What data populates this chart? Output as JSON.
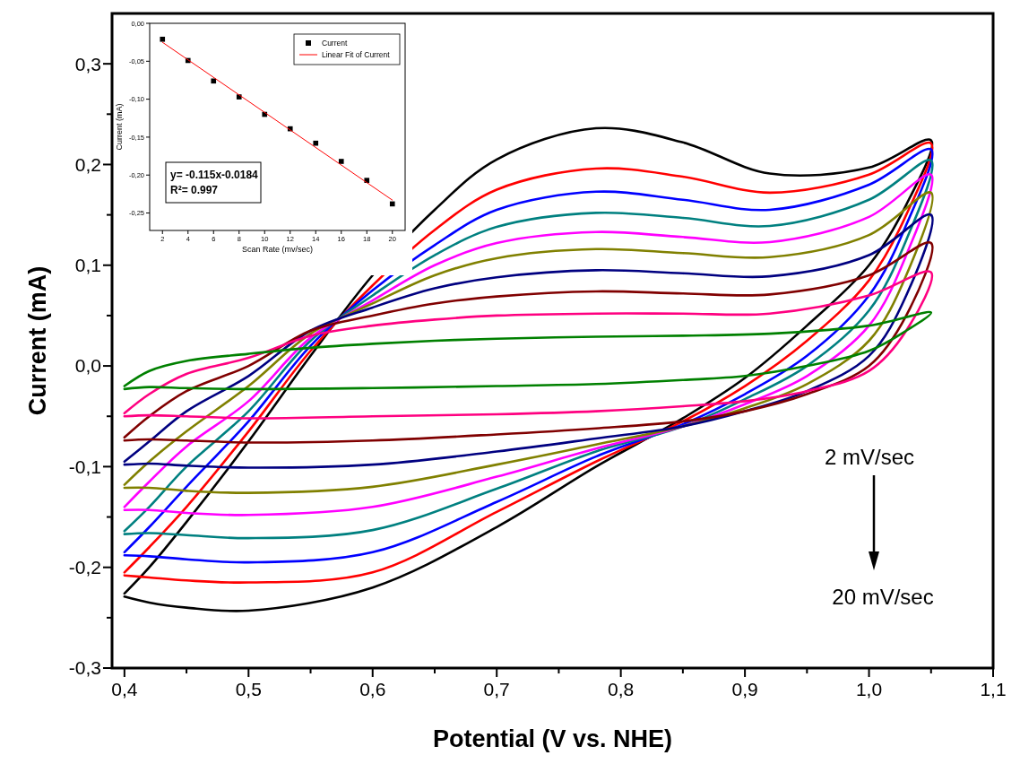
{
  "chart_data": [
    {
      "type": "line",
      "xlabel": "Potential (V vs. NHE)",
      "ylabel": "Current (mA)",
      "xlim": [
        0.39,
        1.1
      ],
      "ylim": [
        -0.3,
        0.35
      ],
      "xticks": [
        {
          "value": 0.4,
          "label": "0,4"
        },
        {
          "value": 0.45,
          "label": null
        },
        {
          "value": 0.5,
          "label": "0,5"
        },
        {
          "value": 0.55,
          "label": null
        },
        {
          "value": 0.6,
          "label": "0,6"
        },
        {
          "value": 0.65,
          "label": null
        },
        {
          "value": 0.7,
          "label": "0,7"
        },
        {
          "value": 0.75,
          "label": null
        },
        {
          "value": 0.8,
          "label": "0,8"
        },
        {
          "value": 0.85,
          "label": null
        },
        {
          "value": 0.9,
          "label": "0,9"
        },
        {
          "value": 0.95,
          "label": null
        },
        {
          "value": 1.0,
          "label": "1,0"
        },
        {
          "value": 1.05,
          "label": null
        },
        {
          "value": 1.1,
          "label": "1,1"
        }
      ],
      "yticks": [
        {
          "value": -0.3,
          "label": "-0,3"
        },
        {
          "value": -0.25,
          "label": null
        },
        {
          "value": -0.2,
          "label": "-0,2"
        },
        {
          "value": -0.15,
          "label": null
        },
        {
          "value": -0.1,
          "label": "-0,1"
        },
        {
          "value": -0.05,
          "label": null
        },
        {
          "value": 0,
          "label": "0,0"
        },
        {
          "value": 0.05,
          "label": null
        },
        {
          "value": 0.1,
          "label": "0,1"
        },
        {
          "value": 0.15,
          "label": null
        },
        {
          "value": 0.2,
          "label": "0,2"
        },
        {
          "value": 0.25,
          "label": null
        },
        {
          "value": 0.3,
          "label": "0,3"
        }
      ],
      "annotations": [
        "2 mV/sec",
        "20 mV/sec"
      ],
      "series": [
        {
          "color": "#000000",
          "x": [
            0.4,
            0.42,
            0.45,
            0.5,
            0.55,
            0.6,
            0.65,
            0.7,
            0.78,
            0.85,
            0.92,
            1.0,
            1.05,
            1.03,
            1.0,
            0.95,
            0.9,
            0.85,
            0.78,
            0.7,
            0.6,
            0.5,
            0.45,
            0.42,
            0.4
          ],
          "values": [
            -0.226,
            -0.2,
            -0.155,
            -0.075,
            0.01,
            0.09,
            0.155,
            0.205,
            0.236,
            0.222,
            0.191,
            0.197,
            0.224,
            0.16,
            0.1,
            0.04,
            -0.012,
            -0.052,
            -0.1,
            -0.16,
            -0.22,
            -0.243,
            -0.24,
            -0.235,
            -0.229
          ]
        },
        {
          "color": "#ff0000",
          "x": [
            0.4,
            0.42,
            0.45,
            0.5,
            0.55,
            0.6,
            0.65,
            0.7,
            0.78,
            0.85,
            0.92,
            1.0,
            1.05,
            1.03,
            1.0,
            0.95,
            0.9,
            0.85,
            0.78,
            0.7,
            0.6,
            0.5,
            0.45,
            0.42,
            0.4
          ],
          "values": [
            -0.205,
            -0.18,
            -0.14,
            -0.065,
            0.015,
            0.08,
            0.135,
            0.175,
            0.196,
            0.188,
            0.172,
            0.19,
            0.221,
            0.15,
            0.085,
            0.025,
            -0.02,
            -0.055,
            -0.095,
            -0.145,
            -0.205,
            -0.215,
            -0.213,
            -0.21,
            -0.208
          ]
        },
        {
          "color": "#0000ff",
          "x": [
            0.4,
            0.42,
            0.45,
            0.5,
            0.55,
            0.6,
            0.65,
            0.7,
            0.78,
            0.85,
            0.92,
            1.0,
            1.05,
            1.03,
            1.0,
            0.95,
            0.9,
            0.85,
            0.78,
            0.7,
            0.6,
            0.5,
            0.45,
            0.42,
            0.4
          ],
          "values": [
            -0.185,
            -0.16,
            -0.12,
            -0.055,
            0.02,
            0.075,
            0.12,
            0.155,
            0.173,
            0.165,
            0.155,
            0.18,
            0.215,
            0.14,
            0.07,
            0.01,
            -0.028,
            -0.058,
            -0.09,
            -0.135,
            -0.185,
            -0.195,
            -0.192,
            -0.189,
            -0.188
          ]
        },
        {
          "color": "#008080",
          "x": [
            0.4,
            0.42,
            0.45,
            0.5,
            0.55,
            0.6,
            0.65,
            0.7,
            0.78,
            0.85,
            0.92,
            1.0,
            1.05,
            1.03,
            1.0,
            0.95,
            0.9,
            0.85,
            0.78,
            0.7,
            0.6,
            0.5,
            0.45,
            0.42,
            0.4
          ],
          "values": [
            -0.164,
            -0.14,
            -0.1,
            -0.045,
            0.025,
            0.07,
            0.11,
            0.138,
            0.152,
            0.147,
            0.139,
            0.165,
            0.204,
            0.125,
            0.055,
            0,
            -0.033,
            -0.06,
            -0.085,
            -0.122,
            -0.163,
            -0.171,
            -0.168,
            -0.166,
            -0.167
          ]
        },
        {
          "color": "#ff00ff",
          "x": [
            0.4,
            0.42,
            0.45,
            0.5,
            0.55,
            0.6,
            0.65,
            0.7,
            0.78,
            0.85,
            0.92,
            1.0,
            1.05,
            1.03,
            1.0,
            0.95,
            0.9,
            0.85,
            0.78,
            0.7,
            0.6,
            0.5,
            0.45,
            0.42,
            0.4
          ],
          "values": [
            -0.14,
            -0.115,
            -0.08,
            -0.035,
            0.028,
            0.065,
            0.1,
            0.122,
            0.133,
            0.128,
            0.123,
            0.148,
            0.19,
            0.11,
            0.04,
            -0.01,
            -0.038,
            -0.06,
            -0.082,
            -0.11,
            -0.14,
            -0.148,
            -0.146,
            -0.143,
            -0.143
          ]
        },
        {
          "color": "#808000",
          "x": [
            0.4,
            0.42,
            0.45,
            0.5,
            0.55,
            0.6,
            0.65,
            0.7,
            0.78,
            0.85,
            0.92,
            1.0,
            1.05,
            1.03,
            1.0,
            0.95,
            0.9,
            0.85,
            0.78,
            0.7,
            0.6,
            0.5,
            0.45,
            0.42,
            0.4
          ],
          "values": [
            -0.118,
            -0.095,
            -0.065,
            -0.02,
            0.032,
            0.062,
            0.09,
            0.107,
            0.116,
            0.112,
            0.108,
            0.13,
            0.172,
            0.09,
            0.025,
            -0.018,
            -0.042,
            -0.06,
            -0.078,
            -0.098,
            -0.12,
            -0.126,
            -0.124,
            -0.121,
            -0.121
          ]
        },
        {
          "color": "#000080",
          "x": [
            0.4,
            0.42,
            0.45,
            0.5,
            0.55,
            0.6,
            0.65,
            0.7,
            0.78,
            0.85,
            0.92,
            1.0,
            1.05,
            1.03,
            1.0,
            0.95,
            0.9,
            0.85,
            0.78,
            0.7,
            0.6,
            0.5,
            0.45,
            0.42,
            0.4
          ],
          "values": [
            -0.095,
            -0.075,
            -0.045,
            -0.01,
            0.035,
            0.058,
            0.077,
            0.088,
            0.095,
            0.092,
            0.089,
            0.11,
            0.15,
            0.07,
            0.01,
            -0.025,
            -0.045,
            -0.06,
            -0.072,
            -0.085,
            -0.098,
            -0.101,
            -0.099,
            -0.097,
            -0.098
          ]
        },
        {
          "color": "#800000",
          "x": [
            0.4,
            0.42,
            0.45,
            0.5,
            0.55,
            0.6,
            0.65,
            0.7,
            0.78,
            0.85,
            0.92,
            1.0,
            1.05,
            1.03,
            1.0,
            0.95,
            0.9,
            0.85,
            0.78,
            0.7,
            0.6,
            0.5,
            0.45,
            0.42,
            0.4
          ],
          "values": [
            -0.071,
            -0.05,
            -0.025,
            0,
            0.035,
            0.05,
            0.062,
            0.069,
            0.074,
            0.072,
            0.071,
            0.09,
            0.122,
            0.05,
            0,
            -0.028,
            -0.045,
            -0.055,
            -0.062,
            -0.068,
            -0.074,
            -0.076,
            -0.074,
            -0.073,
            -0.074
          ]
        },
        {
          "color": "#ff0080",
          "x": [
            0.4,
            0.42,
            0.45,
            0.5,
            0.55,
            0.6,
            0.65,
            0.7,
            0.78,
            0.85,
            0.92,
            1.0,
            1.05,
            1.03,
            1.0,
            0.95,
            0.9,
            0.85,
            0.78,
            0.7,
            0.6,
            0.5,
            0.45,
            0.42,
            0.4
          ],
          "values": [
            -0.047,
            -0.028,
            -0.008,
            0.008,
            0.03,
            0.04,
            0.046,
            0.05,
            0.052,
            0.052,
            0.052,
            0.07,
            0.093,
            0.035,
            -0.005,
            -0.025,
            -0.035,
            -0.04,
            -0.045,
            -0.048,
            -0.05,
            -0.052,
            -0.05,
            -0.049,
            -0.05
          ]
        },
        {
          "color": "#008000",
          "x": [
            0.4,
            0.42,
            0.45,
            0.5,
            0.55,
            0.6,
            0.65,
            0.7,
            0.78,
            0.85,
            0.92,
            1.0,
            1.05,
            1.03,
            1.0,
            0.95,
            0.9,
            0.85,
            0.78,
            0.7,
            0.6,
            0.5,
            0.45,
            0.42,
            0.4
          ],
          "values": [
            -0.02,
            -0.005,
            0.005,
            0.012,
            0.018,
            0.022,
            0.025,
            0.027,
            0.029,
            0.03,
            0.032,
            0.04,
            0.053,
            0.035,
            0.015,
            0,
            -0.01,
            -0.014,
            -0.018,
            -0.02,
            -0.022,
            -0.023,
            -0.022,
            -0.021,
            -0.023
          ]
        }
      ]
    },
    {
      "type": "scatter",
      "xlabel": "Scan Rate (mv/sec)",
      "ylabel": "Current (mA)",
      "xlim": [
        1,
        21
      ],
      "ylim": [
        -0.273,
        0
      ],
      "xticks": [
        2,
        4,
        6,
        8,
        10,
        12,
        14,
        16,
        18,
        20
      ],
      "yticks": [
        {
          "value": 0,
          "label": "0,00"
        },
        {
          "value": -0.05,
          "label": "-0,05"
        },
        {
          "value": -0.1,
          "label": "-0,10"
        },
        {
          "value": -0.15,
          "label": "-0,15"
        },
        {
          "value": -0.2,
          "label": "-0,20"
        },
        {
          "value": -0.25,
          "label": "-0,25"
        }
      ],
      "legend": "top right",
      "annotations": [
        "y= -0.115x-0.0184",
        "R²= 0.997"
      ],
      "series": [
        {
          "name": "Current",
          "marker": "square",
          "color": "#000000",
          "x": [
            2,
            4,
            6,
            8,
            10,
            12,
            14,
            16,
            18,
            20
          ],
          "values": [
            -0.021,
            -0.049,
            -0.076,
            -0.097,
            -0.12,
            -0.139,
            -0.158,
            -0.182,
            -0.207,
            -0.238
          ]
        },
        {
          "name": "Linear Fit of Current",
          "type": "line",
          "color": "#ff0000",
          "x": [
            2,
            20
          ],
          "values": [
            -0.025,
            -0.233
          ]
        }
      ]
    }
  ]
}
